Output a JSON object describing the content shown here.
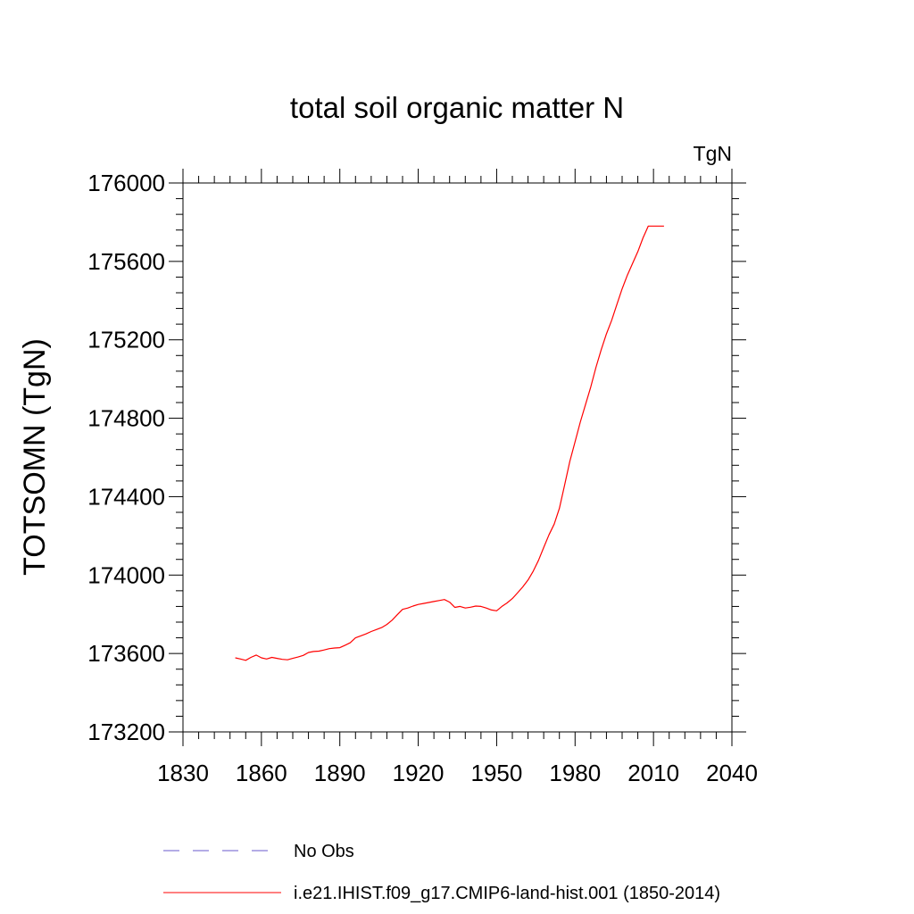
{
  "chart_data": {
    "type": "line",
    "title": "total soil organic matter N",
    "units_label": "TgN",
    "ylabel": "TOTSOMN  (TgN)",
    "xlabel": "",
    "xlim": [
      1830,
      2040
    ],
    "ylim": [
      173200,
      176000
    ],
    "xticks": [
      1830,
      1860,
      1890,
      1920,
      1950,
      1980,
      2010,
      2040
    ],
    "yticks": [
      173200,
      173600,
      174000,
      174400,
      174800,
      175200,
      175600,
      176000
    ],
    "grid": false,
    "legend_position": "bottom",
    "series": [
      {
        "name": "No Obs",
        "color": "#6a5acd",
        "style": "dashed",
        "x": [],
        "y": []
      },
      {
        "name": "i.e21.IHIST.f09_g17.CMIP6-land-hist.001 (1850-2014)",
        "color": "#ff0000",
        "style": "solid",
        "x": [
          1850,
          1852,
          1854,
          1856,
          1858,
          1860,
          1862,
          1864,
          1866,
          1868,
          1870,
          1872,
          1874,
          1876,
          1878,
          1880,
          1882,
          1884,
          1886,
          1888,
          1890,
          1892,
          1894,
          1896,
          1898,
          1900,
          1902,
          1904,
          1906,
          1908,
          1910,
          1912,
          1914,
          1916,
          1918,
          1920,
          1922,
          1924,
          1926,
          1928,
          1930,
          1932,
          1934,
          1936,
          1938,
          1940,
          1942,
          1944,
          1946,
          1948,
          1950,
          1952,
          1954,
          1956,
          1958,
          1960,
          1962,
          1964,
          1966,
          1968,
          1970,
          1972,
          1974,
          1976,
          1978,
          1980,
          1982,
          1984,
          1986,
          1988,
          1990,
          1992,
          1994,
          1996,
          1998,
          2000,
          2002,
          2004,
          2006,
          2008,
          2010,
          2012,
          2014
        ],
        "y": [
          173578,
          173572,
          173565,
          173580,
          173592,
          173578,
          173572,
          173580,
          173575,
          173570,
          173568,
          173575,
          173582,
          173590,
          173605,
          173610,
          173612,
          173618,
          173625,
          173628,
          173630,
          173642,
          173655,
          173680,
          173690,
          173700,
          173712,
          173722,
          173732,
          173748,
          173770,
          173798,
          173825,
          173832,
          173842,
          173850,
          173855,
          173860,
          173865,
          173870,
          173875,
          173862,
          173835,
          173840,
          173832,
          173836,
          173842,
          173840,
          173832,
          173822,
          173818,
          173840,
          173858,
          173880,
          173910,
          173940,
          173975,
          174020,
          174075,
          174140,
          174205,
          174260,
          174340,
          174460,
          174580,
          174680,
          174780,
          174870,
          174960,
          175060,
          175150,
          175230,
          175300,
          175380,
          175460,
          175530,
          175590,
          175650,
          175720,
          175780,
          175780,
          175780,
          175780
        ]
      }
    ]
  }
}
